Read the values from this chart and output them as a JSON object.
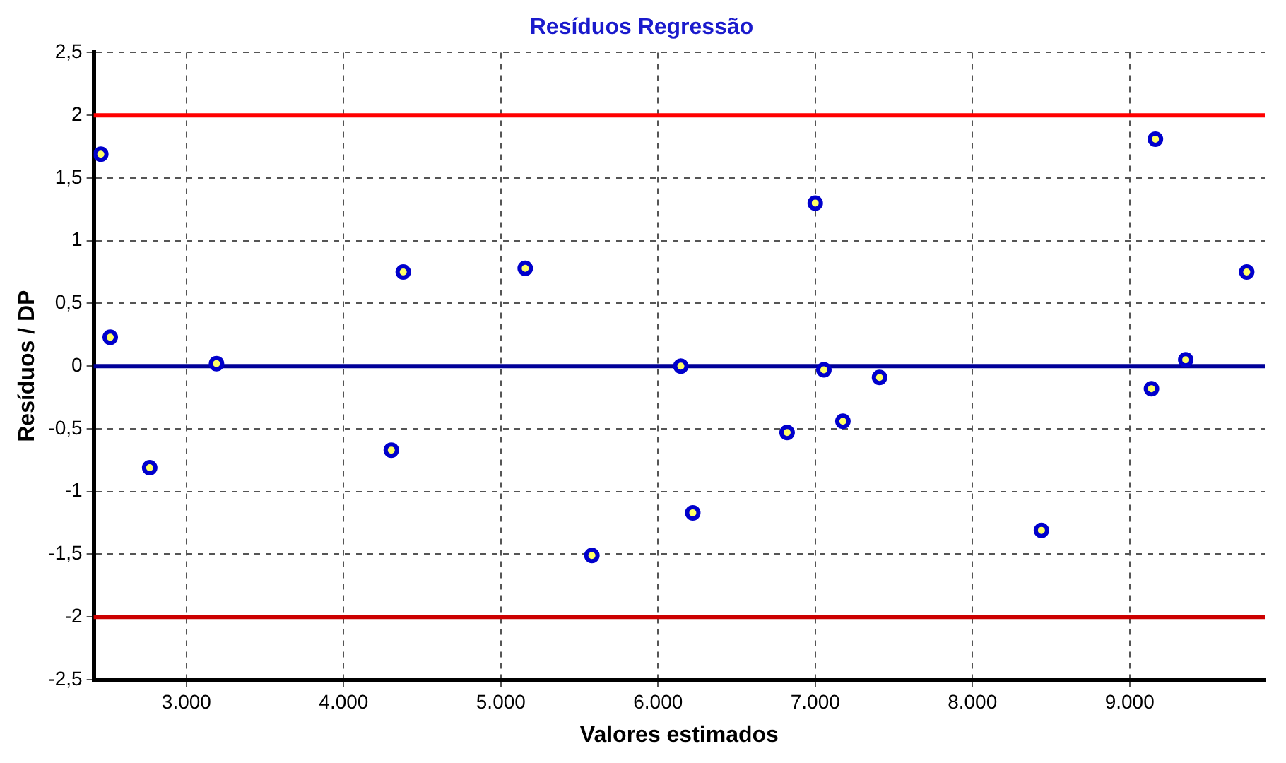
{
  "chart_data": {
    "type": "scatter",
    "title": "Resíduos Regressão",
    "xlabel": "Valores estimados",
    "ylabel": "Resíduos / DP",
    "x": [
      2455,
      2515,
      2766,
      3191,
      4303,
      4379,
      5155,
      5579,
      6145,
      6221,
      6821,
      7000,
      7055,
      7176,
      7409,
      8439,
      9139,
      9164,
      9357,
      9745
    ],
    "series": [
      {
        "color": "#0000cc",
        "values": [
          1.69,
          0.23,
          -0.81,
          0.02,
          -0.67,
          0.75,
          0.78,
          -1.51,
          0.0,
          -1.17,
          -0.53,
          1.3,
          -0.03,
          -0.44,
          -0.09,
          -1.31,
          -0.18,
          1.81,
          0.05,
          0.75
        ]
      }
    ],
    "xlim": [
      2410,
      9860
    ],
    "xticks": [
      {
        "value": 3000,
        "label": "3.000"
      },
      {
        "value": 4000,
        "label": "4.000"
      },
      {
        "value": 5000,
        "label": "5.000"
      },
      {
        "value": 6000,
        "label": "6.000"
      },
      {
        "value": 7000,
        "label": "7.000"
      },
      {
        "value": 8000,
        "label": "8.000"
      },
      {
        "value": 9000,
        "label": "9.000"
      }
    ],
    "ylim": [
      -2.5,
      2.5
    ],
    "yticks": [
      {
        "value": -2.5,
        "label": "-2,5"
      },
      -2,
      {
        "value": -1.5,
        "label": "-1,5"
      },
      -1,
      {
        "value": -0.5,
        "label": "-0,5"
      },
      0,
      {
        "value": 0.5,
        "label": "0,5"
      },
      1,
      {
        "value": 1.5,
        "label": "1,5"
      },
      2,
      {
        "value": 2.5,
        "label": "2,5"
      }
    ],
    "ref_lines": [
      {
        "axis": "y",
        "value": 2,
        "color": "#ff0000"
      },
      {
        "axis": "y",
        "value": 0,
        "color": "#000099"
      },
      {
        "axis": "y",
        "value": -2,
        "color": "#cc0000"
      }
    ],
    "grid": true,
    "marker": "circle",
    "legend": false
  }
}
